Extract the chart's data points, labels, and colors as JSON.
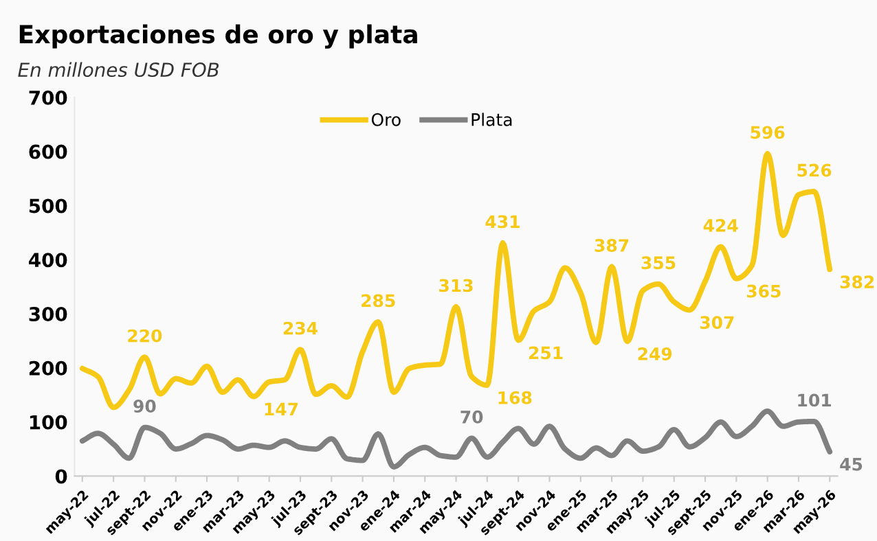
{
  "chart_data": {
    "type": "line",
    "title": "Exportaciones de oro y plata",
    "subtitle": "En millones USD FOB",
    "categories": [
      "may-22",
      null,
      "jul-22",
      null,
      "sept-22",
      null,
      "nov-22",
      null,
      "ene-23",
      null,
      "mar-23",
      null,
      "may-23",
      null,
      "jul-23",
      null,
      "sept-23",
      null,
      "nov-23",
      null,
      "ene-24",
      null,
      "mar-24",
      null,
      "may-24",
      null,
      "jul-24",
      null,
      "sept-24",
      null,
      "nov-24",
      null,
      "ene-25",
      null,
      "mar-25",
      null,
      "may-25",
      null,
      "jul-25",
      null,
      "sept-25",
      null,
      "nov-25",
      null,
      "ene-26",
      null,
      "mar-26",
      null,
      "may-26"
    ],
    "series": [
      {
        "name": "Oro",
        "color": "#f5c915",
        "values": [
          199,
          184,
          127,
          159,
          220,
          152,
          180,
          172,
          203,
          155,
          178,
          147,
          174,
          178,
          234,
          151,
          167,
          146,
          230,
          285,
          155,
          199,
          205,
          207,
          313,
          184,
          168,
          431,
          251,
          305,
          322,
          385,
          339,
          247,
          387,
          249,
          343,
          355,
          322,
          307,
          360,
          424,
          365,
          389,
          596,
          445,
          520,
          526,
          382
        ],
        "value_labels": [
          null,
          null,
          null,
          null,
          "220",
          null,
          null,
          null,
          null,
          null,
          null,
          "147",
          null,
          null,
          "234",
          null,
          null,
          null,
          null,
          "285",
          null,
          null,
          null,
          null,
          "313",
          null,
          "168",
          "431",
          "251",
          null,
          null,
          null,
          null,
          null,
          "387",
          "249",
          null,
          "355",
          null,
          "307",
          null,
          "424",
          "365",
          null,
          "596",
          null,
          null,
          "526",
          "382"
        ]
      },
      {
        "name": "Plata",
        "color": "#808080",
        "values": [
          65,
          79,
          59,
          33,
          90,
          79,
          50,
          60,
          75,
          67,
          50,
          57,
          53,
          65,
          53,
          50,
          69,
          32,
          29,
          78,
          17,
          40,
          53,
          38,
          35,
          70,
          35,
          63,
          88,
          59,
          92,
          50,
          33,
          52,
          38,
          65,
          46,
          54,
          86,
          54,
          71,
          100,
          73,
          92,
          120,
          92,
          100,
          101,
          45
        ],
        "value_labels": [
          null,
          null,
          null,
          null,
          "90",
          null,
          null,
          null,
          null,
          null,
          null,
          null,
          null,
          null,
          null,
          null,
          null,
          null,
          null,
          null,
          null,
          null,
          null,
          null,
          null,
          "70",
          null,
          null,
          null,
          null,
          null,
          null,
          null,
          null,
          null,
          null,
          null,
          null,
          null,
          null,
          null,
          null,
          null,
          null,
          null,
          null,
          null,
          "101",
          "45"
        ]
      }
    ],
    "ylim": [
      0,
      700
    ],
    "yticks": [
      0,
      100,
      200,
      300,
      400,
      500,
      600,
      700
    ],
    "grid": false,
    "legend": "top",
    "marker": "none",
    "line_style": "solid"
  }
}
